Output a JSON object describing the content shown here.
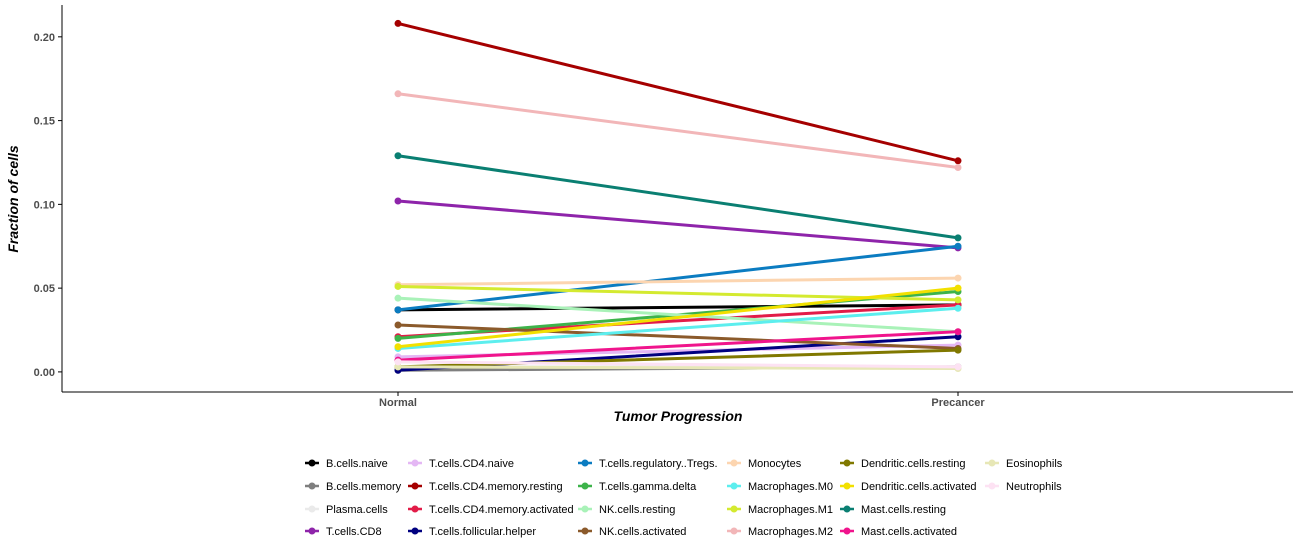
{
  "chart_data": {
    "type": "line",
    "categories": [
      "Normal",
      "Precancer"
    ],
    "xlabel": "Tumor Progression",
    "ylabel": "Fraction of cells",
    "ylim": [
      -0.012,
      0.219
    ],
    "yticks": [
      "0.00",
      "0.05",
      "0.10",
      "0.15",
      "0.20"
    ],
    "ytick_values": [
      0,
      0.05,
      0.1,
      0.15,
      0.2
    ],
    "grid": false,
    "legend_position": "bottom",
    "series": [
      {
        "name": "B.cells.naive",
        "color": "#000000",
        "values": [
          0.037,
          0.04
        ]
      },
      {
        "name": "B.cells.memory",
        "color": "#7f7f7f",
        "values": [
          0.001,
          0.003
        ]
      },
      {
        "name": "Plasma.cells",
        "color": "#eaeaea",
        "values": [
          0.003,
          0.003
        ]
      },
      {
        "name": "T.cells.CD8",
        "color": "#8e24aa",
        "values": [
          0.102,
          0.074
        ]
      },
      {
        "name": "T.cells.CD4.naive",
        "color": "#e4b7f4",
        "values": [
          0.009,
          0.016
        ]
      },
      {
        "name": "T.cells.CD4.memory.resting",
        "color": "#a50000",
        "values": [
          0.208,
          0.126
        ]
      },
      {
        "name": "T.cells.CD4.memory.activated",
        "color": "#e21c48",
        "values": [
          0.021,
          0.04
        ]
      },
      {
        "name": "T.cells.follicular.helper",
        "color": "#000080",
        "values": [
          0.001,
          0.021
        ]
      },
      {
        "name": "T.cells.regulatory..Tregs.",
        "color": "#0b7cc1",
        "values": [
          0.037,
          0.075
        ]
      },
      {
        "name": "T.cells.gamma.delta",
        "color": "#3db34a",
        "values": [
          0.02,
          0.048
        ]
      },
      {
        "name": "NK.cells.resting",
        "color": "#a9f2b8",
        "values": [
          0.044,
          0.024
        ]
      },
      {
        "name": "NK.cells.activated",
        "color": "#8b5a2b",
        "values": [
          0.028,
          0.014
        ]
      },
      {
        "name": "Monocytes",
        "color": "#fcd5b0",
        "values": [
          0.052,
          0.056
        ]
      },
      {
        "name": "Macrophages.M0",
        "color": "#5ceeee",
        "values": [
          0.014,
          0.038
        ]
      },
      {
        "name": "Macrophages.M1",
        "color": "#d4ea30",
        "values": [
          0.051,
          0.043
        ]
      },
      {
        "name": "Macrophages.M2",
        "color": "#f2b6b8",
        "values": [
          0.166,
          0.122
        ]
      },
      {
        "name": "Dendritic.cells.resting",
        "color": "#807800",
        "values": [
          0.003,
          0.013
        ]
      },
      {
        "name": "Dendritic.cells.activated",
        "color": "#f2e000",
        "values": [
          0.015,
          0.05
        ]
      },
      {
        "name": "Mast.cells.resting",
        "color": "#0a7f72",
        "values": [
          0.129,
          0.08
        ]
      },
      {
        "name": "Mast.cells.activated",
        "color": "#f0148c",
        "values": [
          0.007,
          0.024
        ]
      },
      {
        "name": "Eosinophils",
        "color": "#e7e7b6",
        "values": [
          0.003,
          0.002
        ]
      },
      {
        "name": "Neutrophils",
        "color": "#fde2f3",
        "values": [
          0.006,
          0.003
        ]
      }
    ]
  }
}
